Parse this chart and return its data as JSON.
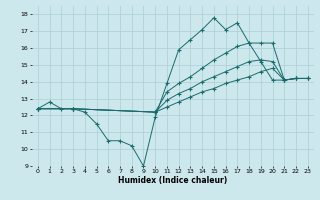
{
  "xlabel": "Humidex (Indice chaleur)",
  "xlim": [
    -0.5,
    23.5
  ],
  "ylim": [
    9,
    18.5
  ],
  "yticks": [
    9,
    10,
    11,
    12,
    13,
    14,
    15,
    16,
    17,
    18
  ],
  "xticks": [
    0,
    1,
    2,
    3,
    4,
    5,
    6,
    7,
    8,
    9,
    10,
    11,
    12,
    13,
    14,
    15,
    16,
    17,
    18,
    19,
    20,
    21,
    22,
    23
  ],
  "bg_color": "#cde8ec",
  "grid_color": "#aacdd4",
  "line_color": "#1a6b6b",
  "s1_x": [
    0,
    1,
    2,
    3,
    4,
    5,
    6,
    7,
    8,
    9,
    10,
    11,
    12,
    13,
    14,
    15,
    16,
    17,
    18,
    19,
    20,
    21,
    22
  ],
  "s1_y": [
    12.4,
    12.8,
    12.4,
    12.4,
    12.2,
    11.5,
    10.5,
    10.5,
    10.2,
    9.0,
    11.9,
    13.9,
    15.9,
    16.5,
    17.1,
    17.8,
    17.1,
    17.5,
    16.3,
    15.2,
    14.1,
    14.1,
    14.2
  ],
  "s2_x": [
    0,
    3,
    10,
    11,
    12,
    13,
    14,
    15,
    16,
    17,
    18,
    19,
    20,
    21,
    22,
    23
  ],
  "s2_y": [
    12.4,
    12.4,
    12.2,
    12.5,
    12.8,
    13.1,
    13.4,
    13.6,
    13.9,
    14.1,
    14.3,
    14.6,
    14.8,
    14.1,
    14.2,
    14.2
  ],
  "s3_x": [
    0,
    3,
    10,
    11,
    12,
    13,
    14,
    15,
    16,
    17,
    18,
    19,
    20,
    21,
    22,
    23
  ],
  "s3_y": [
    12.4,
    12.4,
    12.2,
    12.9,
    13.3,
    13.6,
    14.0,
    14.3,
    14.6,
    14.9,
    15.2,
    15.3,
    15.2,
    14.1,
    14.2,
    14.2
  ],
  "s4_x": [
    0,
    3,
    10,
    11,
    12,
    13,
    14,
    15,
    16,
    17,
    18,
    19,
    20,
    21,
    22,
    23
  ],
  "s4_y": [
    12.4,
    12.4,
    12.2,
    13.4,
    13.9,
    14.3,
    14.8,
    15.3,
    15.7,
    16.1,
    16.3,
    16.3,
    16.3,
    14.1,
    14.2,
    14.2
  ]
}
